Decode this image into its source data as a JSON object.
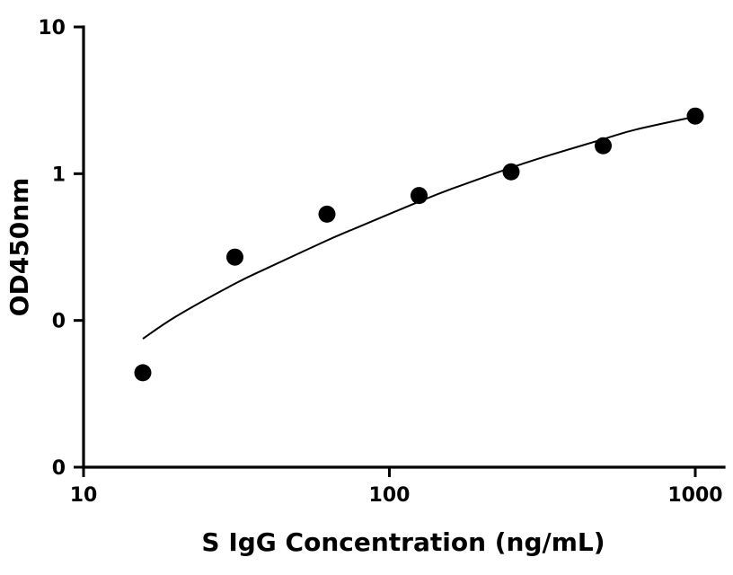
{
  "chart_data": {
    "type": "scatter",
    "title": "",
    "xlabel": "S IgG Concentration (ng/mL)",
    "ylabel": "OD450nm",
    "x_scale": "log",
    "y_scale": "log",
    "xlim": [
      10,
      1000
    ],
    "ylim": [
      0.01,
      10
    ],
    "x_ticks": [
      {
        "value": 10,
        "label": "10"
      },
      {
        "value": 100,
        "label": "100"
      },
      {
        "value": 1000,
        "label": "1000"
      }
    ],
    "y_ticks": [
      {
        "value": 10,
        "label": "10"
      },
      {
        "value": 1,
        "label": "1"
      },
      {
        "value": 0.1,
        "label": "0"
      },
      {
        "value": 0.01,
        "label": "0"
      }
    ],
    "grid": false,
    "legend": "none",
    "series": [
      {
        "x": [
          15.625,
          31.25,
          62.5,
          125,
          250,
          500,
          1000
        ],
        "y": [
          0.044,
          0.27,
          0.53,
          0.71,
          1.03,
          1.55,
          2.47
        ]
      }
    ],
    "fit_curve": {
      "x": [
        15.625,
        20,
        31.25,
        40,
        62.5,
        80,
        125,
        160,
        250,
        320,
        500,
        640,
        1000
      ],
      "y": [
        0.075,
        0.106,
        0.178,
        0.228,
        0.351,
        0.437,
        0.645,
        0.789,
        1.1,
        1.3,
        1.72,
        2.0,
        2.45
      ]
    },
    "colors": {
      "points": "#000000",
      "curve": "#000000",
      "axes": "#000000"
    }
  }
}
